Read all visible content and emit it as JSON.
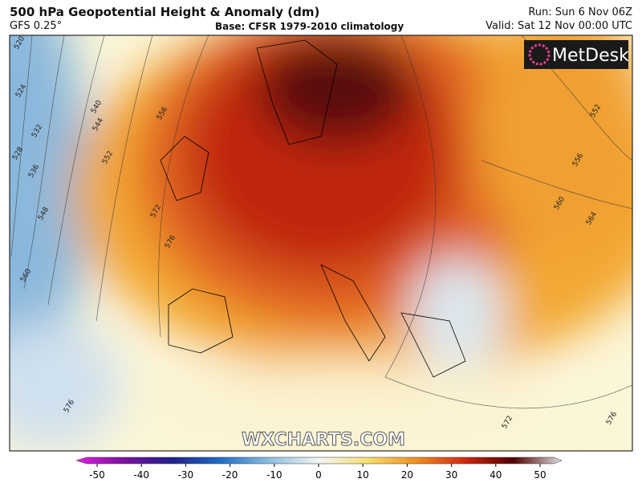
{
  "header": {
    "title": "500 hPa Geopotential Height & Anomaly (dm)",
    "model": "GFS 0.25°",
    "base": "Base: CFSR 1979-2010 climatology",
    "run": "Run: Sun 6 Nov 06Z",
    "valid": "Valid: Sat 12 Nov 00:00 UTC"
  },
  "logo": "MetDesk",
  "watermark": "WXCHARTS.COM",
  "contour_labels": [
    520,
    524,
    528,
    532,
    536,
    540,
    544,
    548,
    552,
    556,
    560,
    572,
    576,
    576,
    552,
    556,
    560,
    564,
    572,
    576
  ],
  "colorbar": {
    "xlim": [
      -50,
      50
    ],
    "xticks": [
      -50,
      -40,
      -30,
      -20,
      -10,
      0,
      10,
      20,
      30,
      40,
      50
    ]
  }
}
